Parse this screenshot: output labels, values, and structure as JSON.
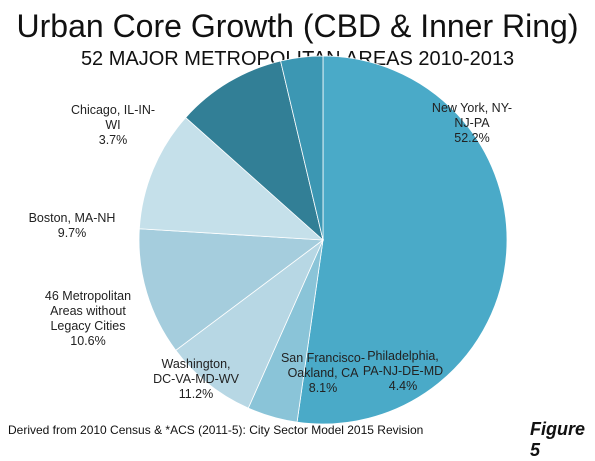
{
  "chart_data": {
    "type": "pie",
    "title": "Urban Core Growth (CBD & Inner Ring)",
    "subtitle": "52 MAJOR METROPOLITAN AREAS 2010-2013",
    "slices": [
      {
        "label": "New York, NY-NJ-PA",
        "lines": [
          "New York, NY-",
          "NJ-PA",
          "52.2%"
        ],
        "value": 52.2,
        "color": "#4aaac8"
      },
      {
        "label": "Philadelphia, PA-NJ-DE-MD",
        "lines": [
          "Philadelphia,",
          "PA-NJ-DE-MD",
          "4.4%"
        ],
        "value": 4.4,
        "color": "#8ac4d8"
      },
      {
        "label": "San Francisco-Oakland, CA",
        "lines": [
          "San Francisco-",
          "Oakland, CA",
          "8.1%"
        ],
        "value": 8.1,
        "color": "#b7d7e4"
      },
      {
        "label": "Washington, DC-VA-MD-WV",
        "lines": [
          "Washington,",
          "DC-VA-MD-WV",
          "11.2%"
        ],
        "value": 11.2,
        "color": "#a5cddd"
      },
      {
        "label": "46 Metropolitan Areas without Legacy Cities",
        "lines": [
          "46 Metropolitan",
          "Areas without",
          "Legacy Cities",
          "10.6%"
        ],
        "value": 10.6,
        "color": "#c5e0ea"
      },
      {
        "label": "Boston, MA-NH",
        "lines": [
          "Boston, MA-NH",
          "9.7%"
        ],
        "value": 9.7,
        "color": "#327f96"
      },
      {
        "label": "Chicago, IL-IN-WI",
        "lines": [
          "Chicago, IL-IN-",
          "WI",
          "3.7%"
        ],
        "value": 3.7,
        "color": "#3c97b3"
      }
    ],
    "legend": "none"
  },
  "source_note": "Derived from 2010 Census & *ACS (2011-5): City Sector Model 2015 Revision",
  "figure_label": "Figure 5"
}
